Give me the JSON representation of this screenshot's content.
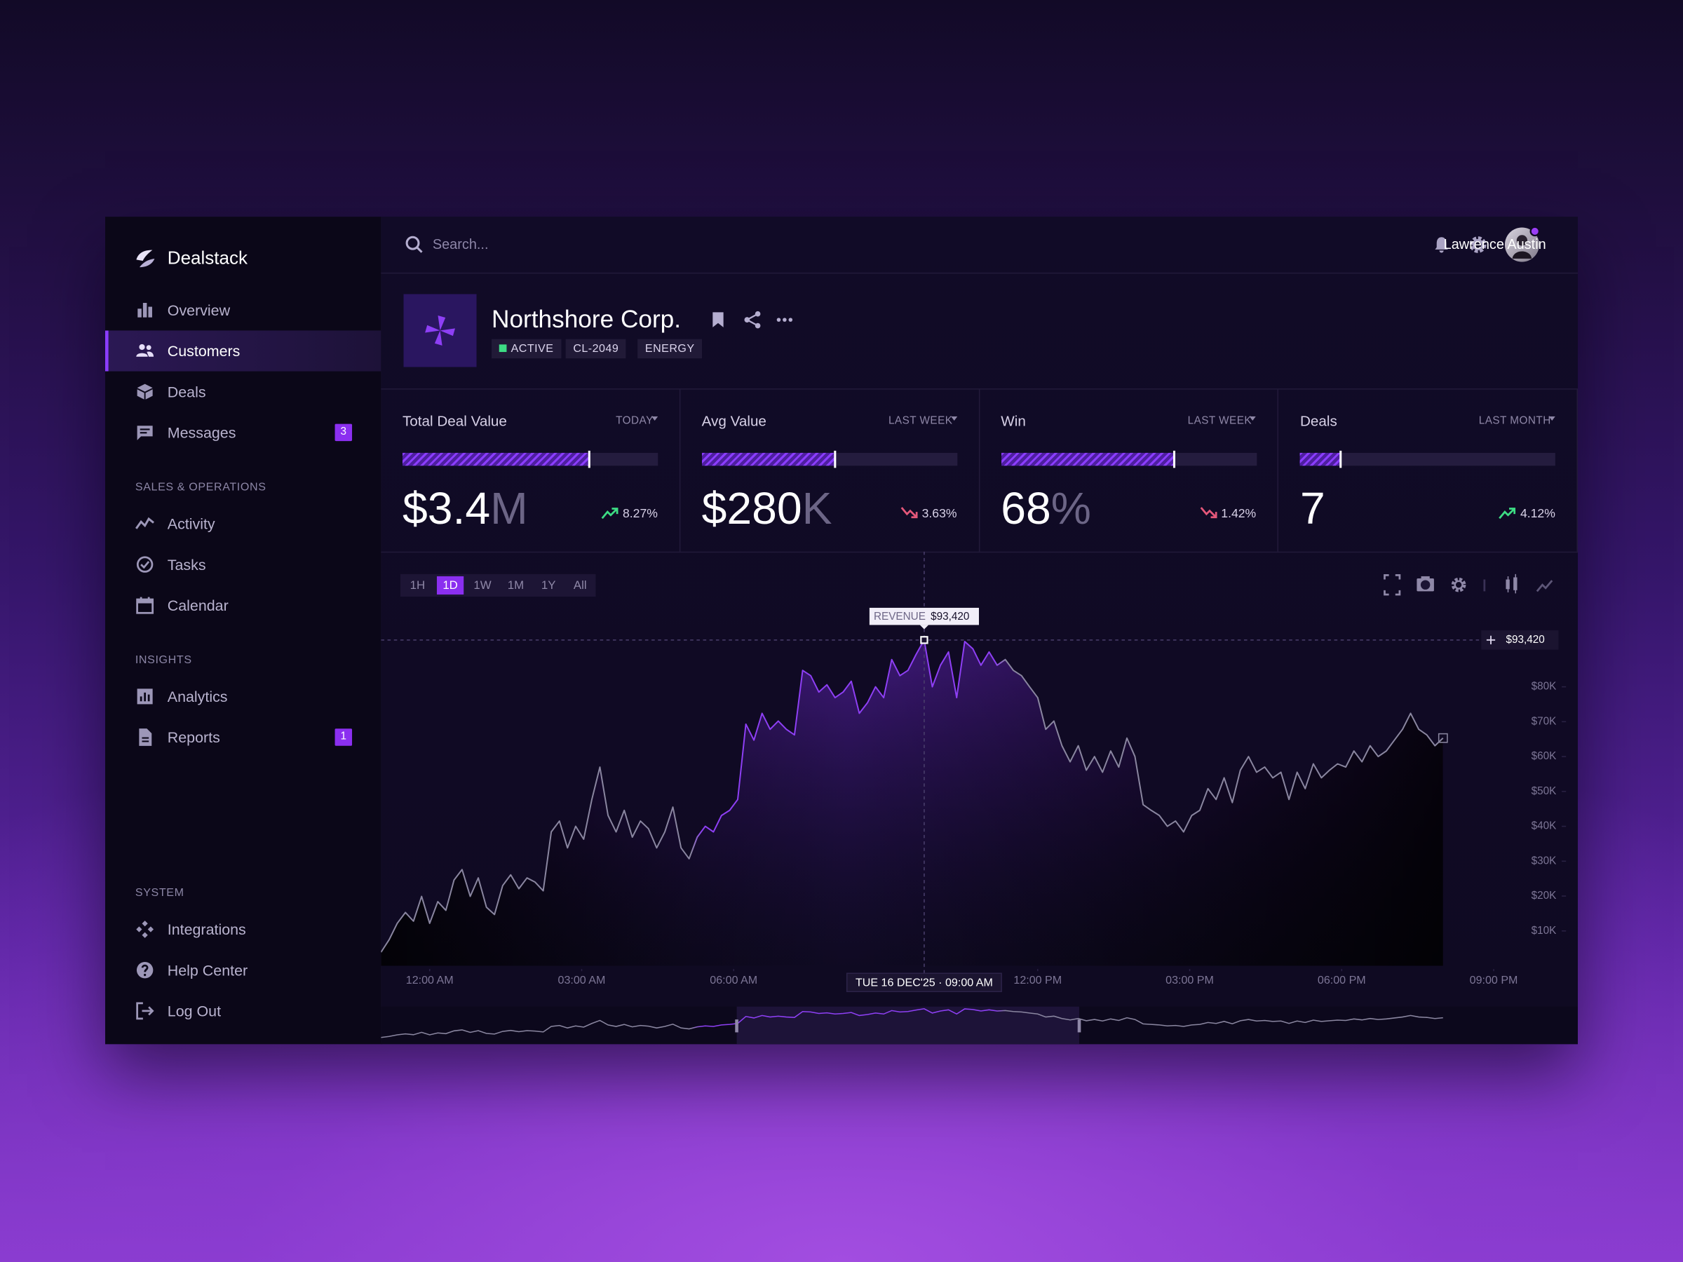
{
  "sidebar": {
    "brand": "Dealstack",
    "main": [
      {
        "label": "Overview"
      },
      {
        "label": "Customers",
        "active": true
      },
      {
        "label": "Deals"
      },
      {
        "label": "Messages",
        "badge": 3
      }
    ],
    "sections": [
      {
        "title": "SALES & OPERATIONS",
        "items": [
          {
            "label": "Activity"
          },
          {
            "label": "Tasks"
          },
          {
            "label": "Calendar"
          }
        ]
      },
      {
        "title": "INSIGHTS",
        "items": [
          {
            "label": "Analytics"
          },
          {
            "label": "Reports",
            "badge": 1
          }
        ]
      }
    ],
    "system": {
      "title": "SYSTEM",
      "items": [
        {
          "label": "Integrations"
        },
        {
          "label": "Help Center"
        },
        {
          "label": "Log Out"
        }
      ]
    }
  },
  "header": {
    "search_placeholder": "Search...",
    "user": "Lawrence Austin"
  },
  "company": {
    "name": "Northshore Corp.",
    "tags": [
      "ACTIVE",
      "CL-2049",
      "ENERGY"
    ]
  },
  "kpis": [
    {
      "title": "Total Deal Value",
      "period": "TODAY",
      "value": "$3.4",
      "unit": "M",
      "change": "8.27%",
      "trend": "up",
      "progress": 73
    },
    {
      "title": "Avg Value",
      "period": "LAST WEEK",
      "value": "$280",
      "unit": "K",
      "change": "3.63%",
      "trend": "down",
      "progress": 52
    },
    {
      "title": "Win",
      "period": "LAST WEEK",
      "value": "68",
      "unit": "%",
      "change": "1.42%",
      "trend": "down",
      "progress": 68
    },
    {
      "title": "Deals",
      "period": "LAST MONTH",
      "value": "7",
      "change": "4.12%",
      "trend": "up",
      "progress": 16
    }
  ],
  "chart_data": {
    "type": "line",
    "ranges": [
      "1H",
      "1D",
      "1W",
      "1M",
      "1Y",
      "All"
    ],
    "active_range": 1,
    "x": [
      -0.96,
      -0.8,
      -0.64,
      -0.48,
      -0.32,
      -0.16,
      0,
      0.16,
      0.32,
      0.48,
      0.64,
      0.8,
      0.96,
      1.12,
      1.28,
      1.44,
      1.6,
      1.76,
      1.92,
      2.08,
      2.24,
      2.4,
      2.56,
      2.72,
      2.88,
      3.04,
      3.2,
      3.36,
      3.52,
      3.68,
      3.84,
      4,
      4.16,
      4.32,
      4.48,
      4.64,
      4.8,
      4.96,
      5.12,
      5.28,
      5.44,
      5.6,
      5.76,
      5.92,
      6.08,
      6.24,
      6.4,
      6.56,
      6.72,
      6.88,
      7.04,
      7.2,
      7.36,
      7.52,
      7.68,
      7.84,
      8,
      8.16,
      8.32,
      8.48,
      8.64,
      8.8,
      8.96,
      9.12,
      9.28,
      9.44,
      9.6,
      9.76,
      9.92,
      10.08,
      10.24,
      10.4,
      10.56,
      10.72,
      10.88,
      11.04,
      11.2,
      11.36,
      11.52,
      11.68,
      11.84,
      12,
      12.16,
      12.32,
      12.48,
      12.64,
      12.8,
      12.96,
      13.12,
      13.28,
      13.44,
      13.6,
      13.76,
      13.92,
      14.08,
      14.24,
      14.4,
      14.56,
      14.72,
      14.88,
      15.04,
      15.2,
      15.36,
      15.52,
      15.68,
      15.84,
      16,
      16.16,
      16.32,
      16.48,
      16.64,
      16.8,
      16.96,
      17.12,
      17.28,
      17.44,
      17.6,
      17.76,
      17.92,
      18.08,
      18.24,
      18.4,
      18.56,
      18.72,
      18.88,
      19.04,
      19.2,
      19.36,
      19.52,
      19.68,
      19.84,
      20
    ],
    "series": [
      {
        "name": "REVENUE",
        "color": "#8e3ff5",
        "muted_color": "#8a86a0",
        "values": [
          3900,
          7500,
          12200,
          15300,
          12800,
          19900,
          12200,
          18400,
          15900,
          24600,
          27600,
          19900,
          25200,
          16800,
          14700,
          23000,
          26100,
          22100,
          25200,
          24000,
          21500,
          38400,
          41500,
          33800,
          40000,
          36300,
          47700,
          57000,
          43100,
          38400,
          44600,
          36900,
          41500,
          39300,
          33800,
          38400,
          45500,
          33800,
          30700,
          36900,
          40000,
          38400,
          43100,
          44600,
          47700,
          69300,
          64700,
          72400,
          67800,
          70200,
          67800,
          66200,
          84700,
          83200,
          78500,
          80600,
          76900,
          78500,
          81600,
          72400,
          75400,
          80000,
          76900,
          87800,
          83200,
          84700,
          89300,
          93420,
          80000,
          86200,
          90000,
          76900,
          93000,
          90900,
          86200,
          90000,
          86200,
          87800,
          84700,
          83200,
          80000,
          76900,
          67800,
          70200,
          63100,
          58500,
          63100,
          56100,
          60000,
          55500,
          61600,
          57000,
          65300,
          60000,
          46200,
          44600,
          43100,
          40000,
          41500,
          38400,
          43100,
          44600,
          50800,
          47700,
          53900,
          46800,
          56100,
          60000,
          55500,
          57000,
          53900,
          55500,
          47700,
          55500,
          50800,
          57900,
          53900,
          56100,
          57900,
          57000,
          61600,
          58500,
          63100,
          60000,
          61600,
          64700,
          67800,
          72400,
          67800,
          66200,
          63100,
          65300
        ]
      }
    ],
    "highlight_range": [
      6.06,
      12.82
    ],
    "xlim": [
      -0.96,
      22.66
    ],
    "xticks": [
      {
        "value": 0,
        "label": "12:00 AM"
      },
      {
        "value": 3,
        "label": "03:00 AM"
      },
      {
        "value": 6,
        "label": "06:00 AM"
      },
      {
        "value": 12,
        "label": "12:00 PM"
      },
      {
        "value": 15,
        "label": "03:00 PM"
      },
      {
        "value": 18,
        "label": "06:00 PM"
      },
      {
        "value": 21,
        "label": "09:00 PM"
      }
    ],
    "ylim": [
      0,
      100000
    ],
    "yticks": [
      {
        "value": 10000,
        "label": "$10K"
      },
      {
        "value": 20000,
        "label": "$20K"
      },
      {
        "value": 30000,
        "label": "$30K"
      },
      {
        "value": 40000,
        "label": "$40K"
      },
      {
        "value": 50000,
        "label": "$50K"
      },
      {
        "value": 60000,
        "label": "$60K"
      },
      {
        "value": 70000,
        "label": "$70K"
      },
      {
        "value": 80000,
        "label": "$80K"
      }
    ],
    "crosshair": {
      "x": 9.76,
      "value": 93420,
      "value_label": "$93,420",
      "date_label": "TUE 16 DEC'25 · 09:00 AM"
    }
  }
}
